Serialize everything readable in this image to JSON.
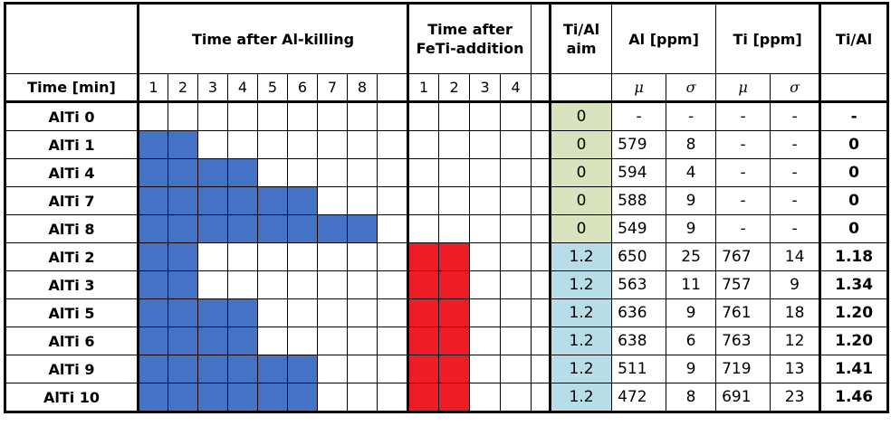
{
  "header": {
    "al_killing": "Time after Al-killing",
    "feti": "Time after FeTi-addition",
    "aim": "Ti/Al aim",
    "al": "Al [ppm]",
    "ti": "Ti [ppm]",
    "ratio": "Ti/Al",
    "time": "Time [min]",
    "al_minutes": [
      1,
      2,
      3,
      4,
      5,
      6,
      7,
      8
    ],
    "feti_minutes": [
      1,
      2,
      3,
      4
    ],
    "mu": "μ",
    "sigma": "σ"
  },
  "rows": [
    {
      "name": "AlTi 0",
      "al_minutes": 0,
      "feti_minutes": 0,
      "aim": 0,
      "al_mu": "-",
      "al_sigma": "-",
      "ti_mu": "-",
      "ti_sigma": "-",
      "ratio": "-"
    },
    {
      "name": "AlTi 1",
      "al_minutes": 2,
      "feti_minutes": 0,
      "aim": 0,
      "al_mu": 579,
      "al_sigma": 8,
      "ti_mu": "-",
      "ti_sigma": "-",
      "ratio": "0"
    },
    {
      "name": "AlTi 4",
      "al_minutes": 4,
      "feti_minutes": 0,
      "aim": 0,
      "al_mu": 594,
      "al_sigma": 4,
      "ti_mu": "-",
      "ti_sigma": "-",
      "ratio": "0"
    },
    {
      "name": "AlTi 7",
      "al_minutes": 6,
      "feti_minutes": 0,
      "aim": 0,
      "al_mu": 588,
      "al_sigma": 9,
      "ti_mu": "-",
      "ti_sigma": "-",
      "ratio": "0"
    },
    {
      "name": "AlTi 8",
      "al_minutes": 8,
      "feti_minutes": 0,
      "aim": 0,
      "al_mu": 549,
      "al_sigma": 9,
      "ti_mu": "-",
      "ti_sigma": "-",
      "ratio": "0"
    },
    {
      "name": "AlTi 2",
      "al_minutes": 2,
      "feti_minutes": 2,
      "aim": 1.2,
      "al_mu": 650,
      "al_sigma": 25,
      "ti_mu": 767,
      "ti_sigma": 14,
      "ratio": "1.18"
    },
    {
      "name": "AlTi 3",
      "al_minutes": 2,
      "feti_minutes": 2,
      "aim": 1.2,
      "al_mu": 563,
      "al_sigma": 11,
      "ti_mu": 757,
      "ti_sigma": 9,
      "ratio": "1.34"
    },
    {
      "name": "AlTi 5",
      "al_minutes": 4,
      "feti_minutes": 2,
      "aim": 1.2,
      "al_mu": 636,
      "al_sigma": 9,
      "ti_mu": 761,
      "ti_sigma": 18,
      "ratio": "1.20"
    },
    {
      "name": "AlTi 6",
      "al_minutes": 4,
      "feti_minutes": 2,
      "aim": 1.2,
      "al_mu": 638,
      "al_sigma": 6,
      "ti_mu": 763,
      "ti_sigma": 12,
      "ratio": "1.20"
    },
    {
      "name": "AlTi 9",
      "al_minutes": 6,
      "feti_minutes": 2,
      "aim": 1.2,
      "al_mu": 511,
      "al_sigma": 9,
      "ti_mu": 719,
      "ti_sigma": 13,
      "ratio": "1.41"
    },
    {
      "name": "AlTi 10",
      "al_minutes": 6,
      "feti_minutes": 2,
      "aim": 1.2,
      "al_mu": 472,
      "al_sigma": 8,
      "ti_mu": 691,
      "ti_sigma": 23,
      "ratio": "1.46"
    }
  ]
}
